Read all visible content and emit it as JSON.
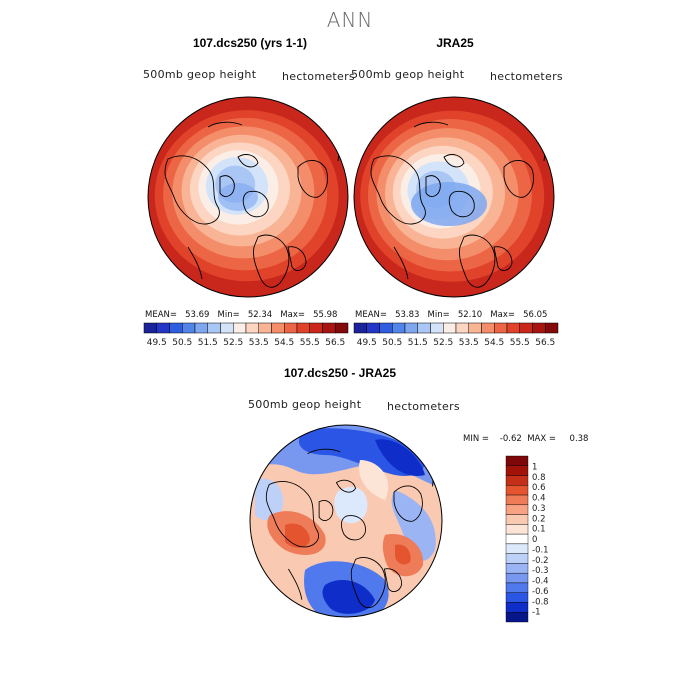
{
  "title": "ANN",
  "colors": {
    "abs_scale": [
      "#1a2399",
      "#2436c7",
      "#2e5de0",
      "#5384ea",
      "#7ea7f0",
      "#a9c6f5",
      "#d2e3fa",
      "#fbeee6",
      "#fcd6c2",
      "#f9b496",
      "#f48e6a",
      "#ec6645",
      "#e0432a",
      "#c9261c",
      "#a81511",
      "#84090b"
    ],
    "diff_scale": [
      "#07158a",
      "#0f2dc8",
      "#2a55e5",
      "#4f79ec",
      "#7898f0",
      "#9ab4f4",
      "#bdd0f8",
      "#dce8fc",
      "#ffffff",
      "#fce4d6",
      "#fac9b1",
      "#f6a283",
      "#ef7c58",
      "#e3542f",
      "#c52f1a",
      "#a11209",
      "#7e070a"
    ]
  },
  "panels": [
    {
      "title": "107.dcs250 (yrs 1-1)",
      "var_label": "500mb geop height",
      "units": "hectometers",
      "stats": "MEAN=   53.69   Min=   52.34   Max=   55.98"
    },
    {
      "title": "JRA25",
      "var_label": "500mb geop height",
      "units": "hectometers",
      "stats": "MEAN=   53.83   Min=   52.10   Max=   56.05"
    },
    {
      "title": "107.dcs250 - JRA25",
      "var_label": "500mb geop height",
      "units": "hectometers",
      "stats": "MIN =    -0.62  MAX =     0.38"
    }
  ],
  "chart_data": [
    {
      "type": "heatmap",
      "title": "107.dcs250 (yrs 1-1)",
      "projection": "polar stereographic (north)",
      "variable": "500mb geop height",
      "units": "hectometers",
      "mean": 53.69,
      "min": 52.34,
      "max": 55.98,
      "colorbar_ticks": [
        "49.5",
        "50.5",
        "51.5",
        "52.5",
        "53.5",
        "54.5",
        "55.5",
        "56.5"
      ]
    },
    {
      "type": "heatmap",
      "title": "JRA25",
      "projection": "polar stereographic (north)",
      "variable": "500mb geop height",
      "units": "hectometers",
      "mean": 53.83,
      "min": 52.1,
      "max": 56.05,
      "colorbar_ticks": [
        "49.5",
        "50.5",
        "51.5",
        "52.5",
        "53.5",
        "54.5",
        "55.5",
        "56.5"
      ]
    },
    {
      "type": "heatmap",
      "title": "107.dcs250 - JRA25",
      "projection": "polar stereographic (north)",
      "variable": "500mb geop height",
      "units": "hectometers",
      "min": -0.62,
      "max": 0.38,
      "colorbar_ticks": [
        "1",
        "0.8",
        "0.6",
        "0.4",
        "0.3",
        "0.2",
        "0.1",
        "0",
        "-0.1",
        "-0.2",
        "-0.3",
        "-0.4",
        "-0.6",
        "-0.8",
        "-1"
      ]
    }
  ]
}
